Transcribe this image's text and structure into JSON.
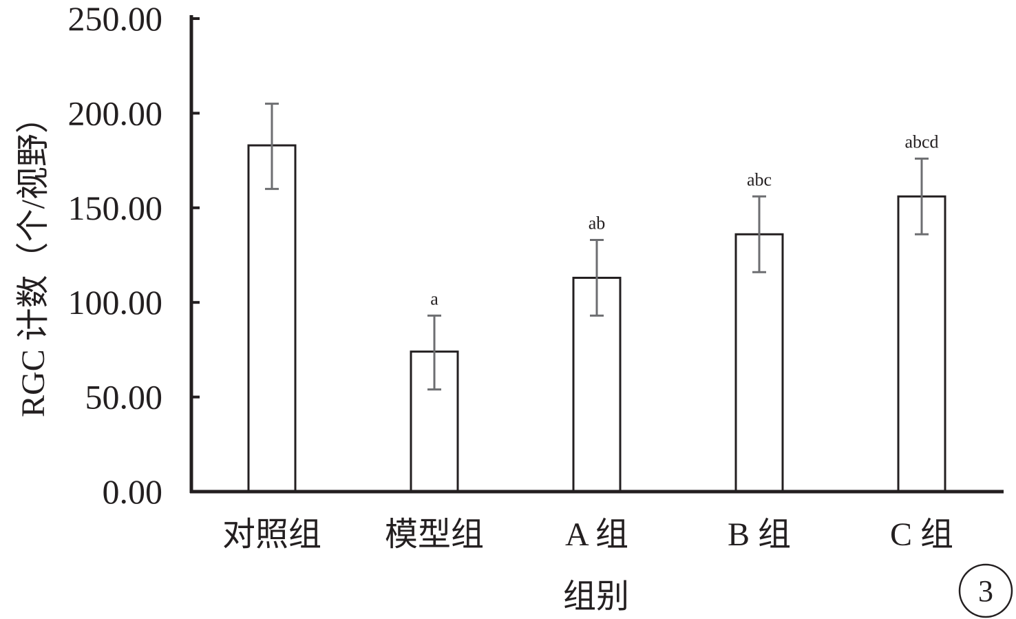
{
  "chart_data": {
    "type": "bar",
    "categories": [
      "对照组",
      "模型组",
      "A 组",
      "B 组",
      "C 组"
    ],
    "values": [
      183,
      74,
      113,
      136,
      156
    ],
    "error_upper": [
      205,
      93,
      133,
      156,
      176
    ],
    "error_lower": [
      160,
      54,
      93,
      116,
      136
    ],
    "significance": [
      "",
      "a",
      "ab",
      "abc",
      "abcd"
    ],
    "xlabel": "组别",
    "ylabel": "RGC 计数（个/视野）",
    "ylim": [
      0,
      250
    ],
    "yticks": [
      "0.00",
      "50.00",
      "100.00",
      "150.00",
      "200.00",
      "250.00"
    ],
    "ytick_values": [
      0,
      50,
      100,
      150,
      200,
      250
    ],
    "grid": false,
    "bar_fill": "#ffffff",
    "bar_stroke": "#231f20",
    "errorbar_color": "#6d6e71"
  },
  "panel_label": "3"
}
